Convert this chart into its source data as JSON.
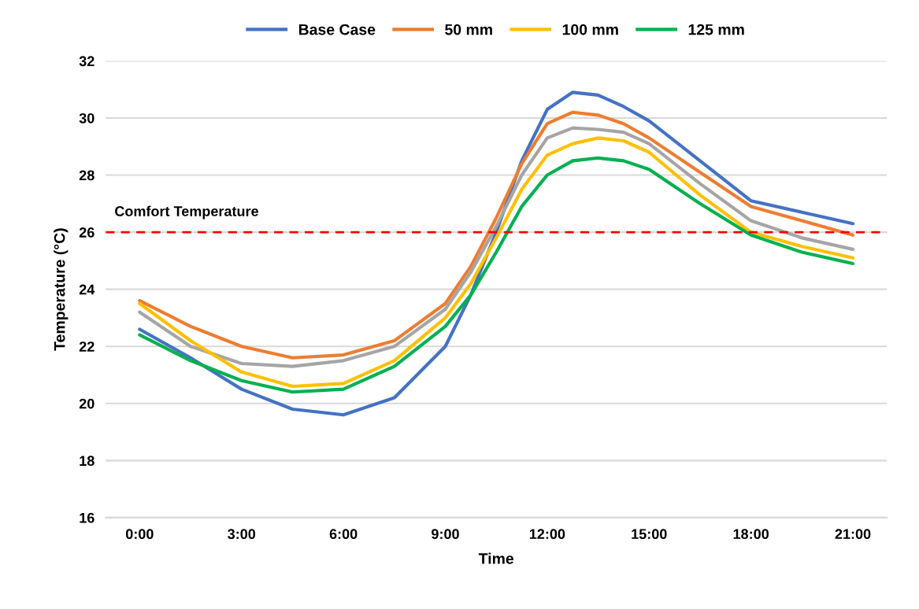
{
  "chart_data": {
    "type": "line",
    "xlabel": "Time",
    "ylabel": "Temperature (°C)",
    "x": [
      0,
      1.5,
      3,
      4.5,
      6,
      7.5,
      9,
      9.75,
      10.5,
      11.25,
      12,
      12.75,
      13.5,
      14.25,
      15,
      16.5,
      18,
      19.5,
      21
    ],
    "xlim": [
      -1,
      22
    ],
    "xticks": [
      {
        "value": 0,
        "label": "0:00"
      },
      {
        "value": 3,
        "label": "3:00"
      },
      {
        "value": 6,
        "label": "6:00"
      },
      {
        "value": 9,
        "label": "9:00"
      },
      {
        "value": 12,
        "label": "12:00"
      },
      {
        "value": 15,
        "label": "15:00"
      },
      {
        "value": 18,
        "label": "18:00"
      },
      {
        "value": 21,
        "label": "21:00"
      }
    ],
    "ylim": [
      16,
      32
    ],
    "yticks": [
      16,
      18,
      20,
      22,
      24,
      26,
      28,
      30,
      32
    ],
    "grid": "y",
    "legend": "top",
    "marker": "none",
    "line_style": "solid",
    "series": [
      {
        "name": "Base Case",
        "color": "#4472c4",
        "values": [
          22.6,
          21.6,
          20.5,
          19.8,
          19.6,
          20.2,
          22.0,
          23.8,
          26.0,
          28.5,
          30.3,
          30.9,
          30.8,
          30.4,
          29.9,
          28.5,
          27.1,
          26.7,
          26.3
        ]
      },
      {
        "name": "50 mm",
        "color": "#ed7d31",
        "values": [
          23.6,
          22.7,
          22.0,
          21.6,
          21.7,
          22.2,
          23.5,
          24.8,
          26.5,
          28.4,
          29.8,
          30.2,
          30.1,
          29.8,
          29.3,
          28.1,
          26.9,
          26.4,
          25.9
        ]
      },
      {
        "color": "#a5a5a5",
        "values": [
          23.2,
          22.0,
          21.4,
          21.3,
          21.5,
          22.0,
          23.3,
          24.6,
          26.2,
          28.0,
          29.3,
          29.65,
          29.6,
          29.5,
          29.1,
          27.7,
          26.4,
          25.8,
          25.4
        ]
      },
      {
        "name": "100 mm",
        "color": "#ffc000",
        "values": [
          23.5,
          22.2,
          21.1,
          20.6,
          20.7,
          21.5,
          23.0,
          24.2,
          25.8,
          27.5,
          28.7,
          29.1,
          29.3,
          29.2,
          28.8,
          27.3,
          26.0,
          25.5,
          25.1
        ]
      },
      {
        "name": "125 mm",
        "color": "#00b050",
        "values": [
          22.4,
          21.5,
          20.8,
          20.4,
          20.5,
          21.3,
          22.7,
          23.8,
          25.3,
          26.9,
          28.0,
          28.5,
          28.6,
          28.5,
          28.2,
          27.0,
          25.9,
          25.3,
          24.9
        ]
      }
    ],
    "ref_lines": [
      {
        "axis": "y",
        "value": 26,
        "label": "Comfort Temperature",
        "color": "#ff0000",
        "line_style": "dashed"
      }
    ]
  }
}
